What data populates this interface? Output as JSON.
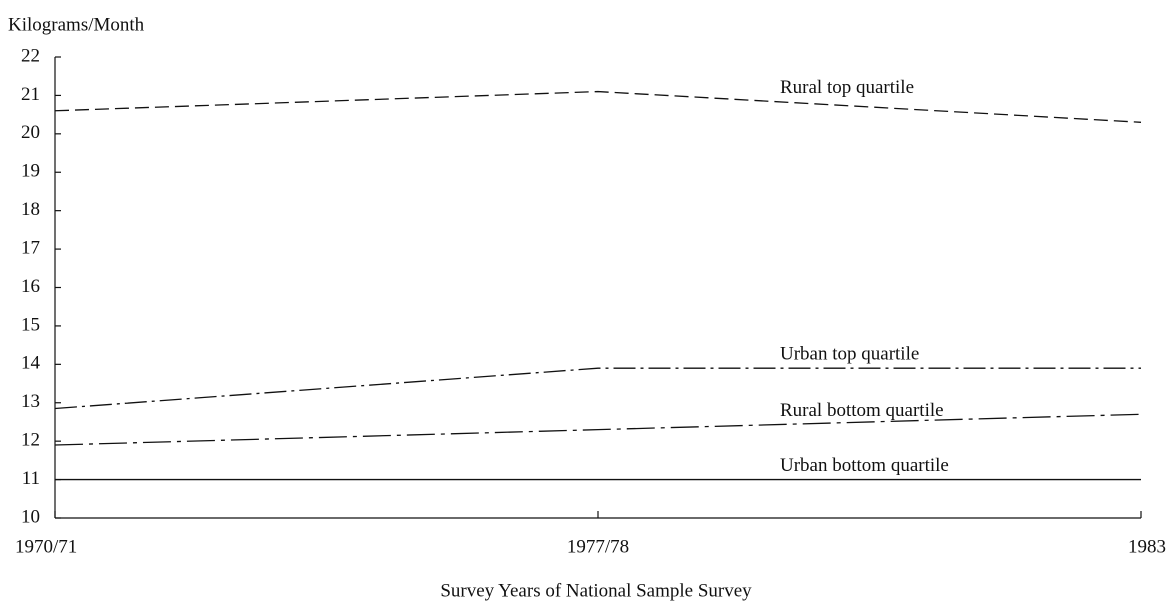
{
  "chart_data": {
    "type": "line",
    "y_label": "Kilograms/Month",
    "x_label": "Survey Years of National Sample Survey",
    "categories": [
      "1970/71",
      "1977/78",
      "1983"
    ],
    "series": [
      {
        "name": "Rural top quartile",
        "color": "#111111",
        "values": [
          20.6,
          21.1,
          20.3
        ]
      },
      {
        "name": "Urban top quartile",
        "color": "#111111",
        "values": [
          12.85,
          13.9,
          13.9
        ]
      },
      {
        "name": "Rural bottom quartile",
        "color": "#111111",
        "values": [
          11.9,
          12.3,
          12.7
        ]
      },
      {
        "name": "Urban bottom quartile",
        "color": "#111111",
        "values": [
          11.0,
          11.0,
          11.0
        ]
      }
    ],
    "ylim": [
      10,
      22
    ],
    "yticks": [
      10,
      11,
      12,
      13,
      14,
      15,
      16,
      17,
      18,
      19,
      20,
      21,
      22
    ],
    "grid": false
  }
}
